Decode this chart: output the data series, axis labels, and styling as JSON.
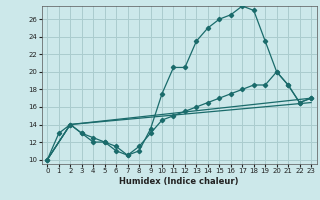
{
  "xlabel": "Humidex (Indice chaleur)",
  "background_color": "#cce8ea",
  "grid_color": "#aaccce",
  "line_color": "#1a6b6b",
  "xlim": [
    -0.5,
    23.5
  ],
  "ylim": [
    9.5,
    27.5
  ],
  "xticks": [
    0,
    1,
    2,
    3,
    4,
    5,
    6,
    7,
    8,
    9,
    10,
    11,
    12,
    13,
    14,
    15,
    16,
    17,
    18,
    19,
    20,
    21,
    22,
    23
  ],
  "yticks": [
    10,
    12,
    14,
    16,
    18,
    20,
    22,
    24,
    26
  ],
  "line1_x": [
    0,
    1,
    2,
    3,
    4,
    5,
    6,
    7,
    8,
    9,
    10,
    11,
    12,
    13,
    14,
    15,
    16,
    17,
    18,
    19,
    20,
    21,
    22,
    23
  ],
  "line1_y": [
    10,
    13,
    14,
    13,
    12,
    12,
    11,
    10.5,
    11,
    13.5,
    17.5,
    20.5,
    20.5,
    23.5,
    25,
    26,
    26.5,
    27.5,
    27,
    23.5,
    20,
    18.5,
    16.5,
    17
  ],
  "line2_x": [
    0,
    2,
    3,
    4,
    5,
    6,
    7,
    8,
    9,
    10,
    11,
    12,
    13,
    14,
    15,
    16,
    17,
    18,
    19,
    20,
    21,
    22,
    23
  ],
  "line2_y": [
    10,
    14,
    13,
    12.5,
    12,
    11.5,
    10.5,
    11.5,
    13,
    14.5,
    15,
    15.5,
    16,
    16.5,
    17,
    17.5,
    18,
    18.5,
    18.5,
    20,
    18.5,
    16.5,
    17
  ],
  "line3_x": [
    0,
    2,
    23
  ],
  "line3_y": [
    10,
    14,
    17
  ],
  "line4_x": [
    0,
    2,
    23
  ],
  "line4_y": [
    10,
    14,
    16.5
  ]
}
